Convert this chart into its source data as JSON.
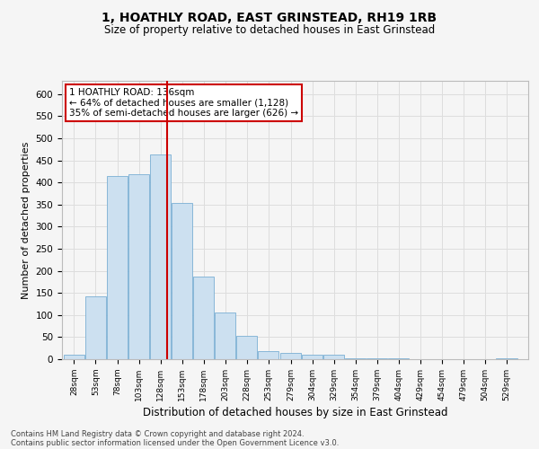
{
  "title": "1, HOATHLY ROAD, EAST GRINSTEAD, RH19 1RB",
  "subtitle": "Size of property relative to detached houses in East Grinstead",
  "xlabel": "Distribution of detached houses by size in East Grinstead",
  "ylabel": "Number of detached properties",
  "annotation_title": "1 HOATHLY ROAD: 136sqm",
  "annotation_line1": "← 64% of detached houses are smaller (1,128)",
  "annotation_line2": "35% of semi-detached houses are larger (626) →",
  "footer1": "Contains HM Land Registry data © Crown copyright and database right 2024.",
  "footer2": "Contains public sector information licensed under the Open Government Licence v3.0.",
  "property_size": 136,
  "categories": [
    28,
    53,
    78,
    103,
    128,
    153,
    178,
    203,
    228,
    253,
    279,
    304,
    329,
    354,
    379,
    404,
    429,
    454,
    479,
    504,
    529
  ],
  "values": [
    10,
    143,
    415,
    418,
    463,
    353,
    187,
    105,
    52,
    18,
    14,
    11,
    10,
    3,
    2,
    2,
    1,
    1,
    1,
    1,
    2
  ],
  "bar_color": "#cce0f0",
  "bar_edge_color": "#7aafd4",
  "vline_color": "#cc0000",
  "annotation_box_color": "#cc0000",
  "grid_color": "#dddddd",
  "ylim": [
    0,
    630
  ],
  "yticks": [
    0,
    50,
    100,
    150,
    200,
    250,
    300,
    350,
    400,
    450,
    500,
    550,
    600
  ],
  "background_color": "#f5f5f5",
  "figsize": [
    6.0,
    5.0
  ],
  "dpi": 100
}
